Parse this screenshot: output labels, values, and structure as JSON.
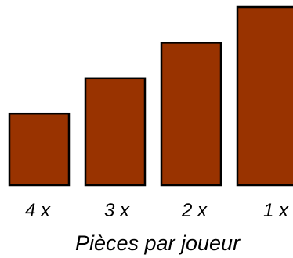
{
  "chart_data": {
    "type": "bar",
    "categories": [
      "4 x",
      "3 x",
      "2 x",
      "1 x"
    ],
    "values": [
      4,
      6,
      8,
      10
    ],
    "title": "",
    "xlabel": "Pièces par joueur",
    "ylabel": "",
    "ylim": [
      0,
      10
    ],
    "grid": false,
    "bar_color": "#993300",
    "bar_stroke": "#000000"
  }
}
